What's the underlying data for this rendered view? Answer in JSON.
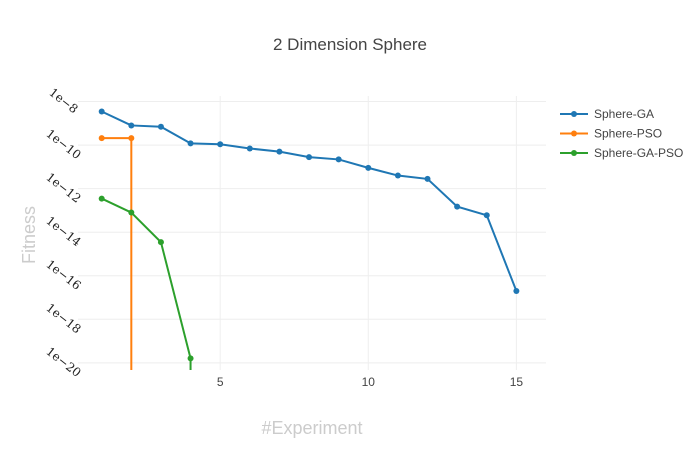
{
  "chart_data": {
    "type": "line",
    "title": "2 Dimension Sphere",
    "xlabel": "#Experiment",
    "ylabel": "Fitness",
    "y_scale": "log",
    "xlim": [
      0.2,
      16
    ],
    "ylim": [
      4.7e-21,
      1.8e-08
    ],
    "x_ticks": [
      5,
      10,
      15
    ],
    "x_tick_labels": [
      "5",
      "10",
      "15"
    ],
    "y_ticks": [
      1e-08,
      1e-10,
      1e-12,
      1e-14,
      1e-16,
      1e-18,
      1e-20
    ],
    "y_tick_labels": [
      "1e−8",
      "1e−10",
      "1e−12",
      "1e−14",
      "1e−16",
      "1e−18",
      "1e−20"
    ],
    "grid": true,
    "legend_position": "top-right",
    "colors": {
      "Sphere-GA": "#1f77b4",
      "Sphere-PSO": "#ff7f0e",
      "Sphere-GA-PSO": "#2ca02c"
    },
    "series": [
      {
        "name": "Sphere-GA",
        "x": [
          1,
          2,
          3,
          4,
          5,
          6,
          7,
          8,
          9,
          10,
          11,
          12,
          13,
          14,
          15
        ],
        "y": [
          3.5e-09,
          8e-10,
          7e-10,
          1.2e-10,
          1.1e-10,
          7e-11,
          5e-11,
          2.8e-11,
          2.2e-11,
          9e-12,
          4e-12,
          2.8e-12,
          1.5e-13,
          6e-14,
          2e-17
        ]
      },
      {
        "name": "Sphere-PSO",
        "x": [
          1,
          2,
          2
        ],
        "y": [
          2.1e-10,
          2.1e-10,
          4.7e-21
        ]
      },
      {
        "name": "Sphere-GA-PSO",
        "x": [
          1,
          2,
          3,
          4,
          4
        ],
        "y": [
          3.5e-13,
          8e-14,
          3.5e-15,
          1.6e-20,
          4.7e-21
        ]
      }
    ]
  }
}
